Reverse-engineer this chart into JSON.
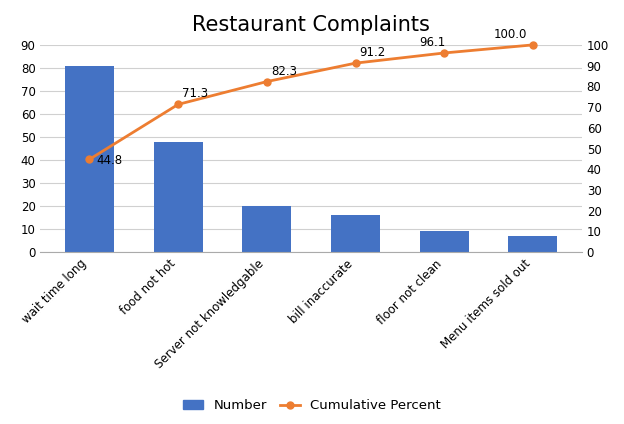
{
  "title": "Restaurant Complaints",
  "categories": [
    "wait time long",
    "food not hot",
    "Server not knowledgable",
    "bill inaccurate",
    "floor not clean",
    "Menu items sold out"
  ],
  "bar_values": [
    81,
    48,
    20,
    16,
    9,
    7
  ],
  "cum_percent": [
    44.8,
    71.3,
    82.3,
    91.2,
    96.1,
    100.0
  ],
  "cum_percent_labels": [
    "44.8",
    "71.3",
    "82.3",
    "91.2",
    "96.1",
    "100.0"
  ],
  "bar_color": "#4472C4",
  "line_color": "#ED7D31",
  "left_ylim": [
    0,
    90
  ],
  "left_yticks": [
    0,
    10,
    20,
    30,
    40,
    50,
    60,
    70,
    80,
    90
  ],
  "right_ylim": [
    0.0,
    100.0
  ],
  "right_yticks": [
    0.0,
    10.0,
    20.0,
    30.0,
    40.0,
    50.0,
    60.0,
    70.0,
    80.0,
    90.0,
    100.0
  ],
  "legend_number_label": "Number",
  "legend_cum_label": "Cumulative Percent",
  "title_fontsize": 15,
  "tick_fontsize": 8.5,
  "annotation_fontsize": 8.5,
  "legend_fontsize": 9.5,
  "bar_width": 0.55,
  "line_width": 2.0,
  "marker_size": 5
}
